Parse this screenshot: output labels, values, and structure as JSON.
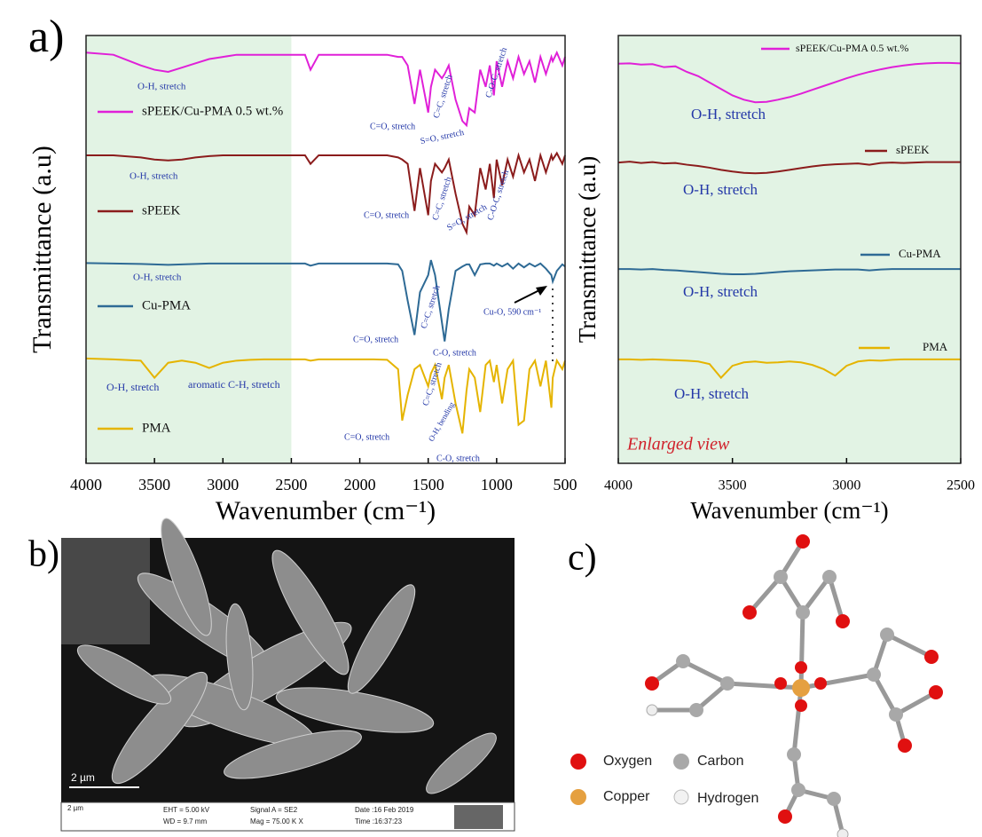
{
  "chart_data": [
    {
      "type": "line",
      "panel_label": "a)",
      "xlabel": "Wavenumber (cm⁻¹)",
      "ylabel": "Transmittance (a.u)",
      "xlim": [
        4000,
        500
      ],
      "xticks": [
        4000,
        3500,
        3000,
        2500,
        2000,
        1500,
        1000,
        500
      ],
      "ylim": [
        0,
        100
      ],
      "shaded_region": [
        4000,
        2500
      ],
      "shade_color": "#e2f3e4",
      "annotation_color": "#2438a8",
      "x": [
        4000,
        3800,
        3600,
        3500,
        3400,
        3300,
        3200,
        3100,
        3000,
        2900,
        2800,
        2700,
        2600,
        2500,
        2400,
        2360,
        2300,
        2200,
        2100,
        2000,
        1900,
        1800,
        1720,
        1690,
        1650,
        1600,
        1560,
        1500,
        1480,
        1450,
        1400,
        1380,
        1350,
        1300,
        1250,
        1220,
        1200,
        1160,
        1120,
        1080,
        1050,
        1020,
        1000,
        960,
        920,
        880,
        840,
        800,
        760,
        720,
        680,
        640,
        600,
        590,
        560,
        520,
        500
      ],
      "series": [
        {
          "name": "sPEEK/Cu-PMA 0.5 wt.%",
          "color": "#e020d8",
          "values": [
            96,
            95.5,
            93,
            92,
            91.5,
            92.5,
            93.5,
            94.5,
            95,
            95.5,
            95.5,
            95.5,
            95.5,
            95.5,
            95.5,
            92,
            95.5,
            95.5,
            95.5,
            95.5,
            95.5,
            95.5,
            95,
            95,
            93,
            84,
            92,
            82,
            88,
            92,
            90,
            91,
            93,
            85,
            80,
            79,
            83,
            82,
            92,
            88,
            93,
            86,
            94,
            88,
            94,
            90,
            95,
            91,
            94,
            89,
            95,
            91,
            95,
            94,
            96,
            93,
            95
          ]
        },
        {
          "name": "sPEEK",
          "color": "#8b1c1c",
          "values": [
            72,
            72,
            71.5,
            71,
            70.8,
            71,
            71.5,
            71.8,
            72,
            72,
            72,
            72,
            72,
            72,
            72,
            70,
            72,
            72,
            72,
            72,
            72,
            72,
            71.5,
            71,
            70,
            59,
            69,
            58,
            66,
            70,
            68,
            69,
            71,
            63,
            56,
            54,
            60,
            58,
            69,
            64,
            70,
            62,
            71,
            65,
            71,
            67,
            72,
            68,
            71,
            66,
            72,
            68,
            72,
            71,
            72.5,
            70,
            72
          ]
        },
        {
          "name": "Cu-PMA",
          "color": "#2e6a95",
          "values": [
            46.8,
            46.7,
            46.6,
            46.5,
            46.4,
            46.5,
            46.6,
            46.7,
            46.7,
            46.7,
            46.7,
            46.7,
            46.7,
            46.7,
            46.7,
            46.2,
            46.7,
            46.7,
            46.7,
            46.7,
            46.7,
            46.7,
            46.5,
            45,
            38,
            30,
            40,
            44,
            47.5,
            44,
            33,
            28.5,
            36,
            45,
            46,
            46.5,
            46.5,
            44,
            46.5,
            46.7,
            46.7,
            46.2,
            46.7,
            46,
            46.7,
            45.5,
            46.7,
            45.8,
            46.7,
            46,
            46.7,
            45.5,
            44,
            42.5,
            45,
            46.5,
            46
          ]
        },
        {
          "name": "PMA",
          "color": "#e5b400",
          "values": [
            24.5,
            24.3,
            24,
            20,
            23.5,
            24,
            23.5,
            22.3,
            23.5,
            24,
            24.2,
            24.3,
            24.3,
            24.3,
            24.3,
            24,
            24.3,
            24.3,
            24.3,
            24.3,
            24.3,
            24.2,
            22,
            10,
            16,
            22,
            23,
            18,
            21,
            23,
            15,
            20,
            23,
            14,
            7,
            17,
            22,
            20,
            12,
            23,
            24,
            19,
            23,
            14,
            22,
            24,
            9,
            10,
            22,
            24,
            18,
            24,
            13,
            20,
            24,
            22,
            24
          ]
        }
      ],
      "annotations": [
        "O-H, stretch",
        "C=O, stretch",
        "C=C, stretch",
        "S=O, stretch",
        "C-O-C, stretch",
        "O-H, stretch",
        "C=O, stretch",
        "C=C, stretch",
        "S=O, stretch",
        "C-O-C, stretch",
        "O-H, stretch",
        "C=O, stretch",
        "C=C, stretch",
        "C-O, stretch",
        "Cu-O, 590 cm⁻¹",
        "O-H, stretch",
        "aromatic C-H, stretch",
        "C=O, stretch",
        "C=C, stretch",
        "O-H, bending",
        "C-O, stretch"
      ]
    },
    {
      "type": "line",
      "xlabel": "Wavenumber (cm⁻¹)",
      "ylabel": "Transmittance (a.u)",
      "xlim": [
        4000,
        2500
      ],
      "xticks": [
        4000,
        3500,
        3000,
        2500
      ],
      "ylim": [
        0,
        100
      ],
      "shaded_region": [
        4000,
        2500
      ],
      "shade_color": "#e2f3e4",
      "annotation_color": "#2438a8",
      "x": [
        4000,
        3950,
        3900,
        3850,
        3800,
        3750,
        3700,
        3650,
        3600,
        3550,
        3500,
        3450,
        3400,
        3350,
        3300,
        3250,
        3200,
        3150,
        3100,
        3050,
        3000,
        2950,
        2900,
        2850,
        2800,
        2750,
        2700,
        2650,
        2600,
        2550,
        2500
      ],
      "series": [
        {
          "name": "sPEEK/Cu-PMA 0.5 wt.%",
          "color": "#e020d8",
          "values": [
            93.4,
            93.5,
            93.2,
            93.3,
            92.6,
            92.8,
            91.5,
            90.5,
            89,
            87.5,
            86,
            85,
            84.4,
            84.5,
            85,
            85.6,
            86.4,
            87.3,
            88.2,
            89.1,
            90,
            90.8,
            91.5,
            92.1,
            92.6,
            93,
            93.3,
            93.5,
            93.6,
            93.6,
            93.5
          ]
        },
        {
          "name": "sPEEK",
          "color": "#8b1c1c",
          "values": [
            70.3,
            70.5,
            70.2,
            70.4,
            70.1,
            70.2,
            69.8,
            69.5,
            69.1,
            68.6,
            68.2,
            67.9,
            67.8,
            67.9,
            68.2,
            68.6,
            69,
            69.4,
            69.7,
            69.9,
            70,
            70.1,
            69.8,
            70.2,
            70.3,
            70.2,
            70.3,
            70.4,
            70.4,
            70.4,
            70.4
          ]
        },
        {
          "name": "Cu-PMA",
          "color": "#2e6a95",
          "values": [
            45.4,
            45.4,
            45.3,
            45.4,
            45.2,
            45.1,
            44.9,
            44.7,
            44.5,
            44.3,
            44.2,
            44.2,
            44.3,
            44.5,
            44.7,
            44.9,
            45,
            45.1,
            45.2,
            45.3,
            45.3,
            45.3,
            45.1,
            45.3,
            45.4,
            45.4,
            45.4,
            45.4,
            45.4,
            45.4,
            45.4
          ]
        },
        {
          "name": "PMA",
          "color": "#e5b400",
          "values": [
            24.3,
            24.3,
            24.2,
            24.3,
            24.2,
            24.1,
            24,
            23.8,
            23.2,
            20,
            22.8,
            23.6,
            23.8,
            23.5,
            23.6,
            23.8,
            23.6,
            23,
            22,
            20.5,
            22.8,
            23.8,
            24.1,
            24,
            24.2,
            24.3,
            24.3,
            24.3,
            24.3,
            24.3,
            24.3
          ]
        }
      ],
      "annotations": [
        "O-H, stretch",
        "O-H, stretch",
        "O-H, stretch",
        "O-H, stretch",
        "Enlarged view"
      ]
    }
  ],
  "panel_b": {
    "label": "b)",
    "scale_bar": "2 µm",
    "footer": [
      "2 µm",
      "EHT = 5.00 kV",
      "WD = 9.7 mm",
      "Signal A = SE2",
      "Mag = 75.00 K X",
      "Date :16 Feb 2019",
      "Time :16:37:23"
    ]
  },
  "panel_c": {
    "label": "c)",
    "legend": [
      "Oxygen",
      "Carbon",
      "Copper",
      "Hydrogen"
    ]
  }
}
